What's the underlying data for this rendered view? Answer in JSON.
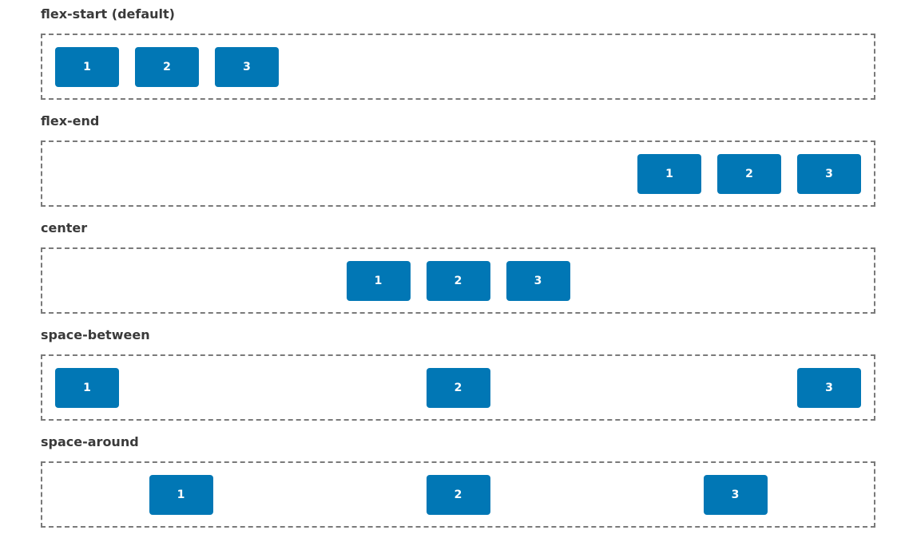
{
  "sections": [
    {
      "title": "flex-start (default)",
      "items": [
        "1",
        "2",
        "3"
      ]
    },
    {
      "title": "flex-end",
      "items": [
        "1",
        "2",
        "3"
      ]
    },
    {
      "title": "center",
      "items": [
        "1",
        "2",
        "3"
      ]
    },
    {
      "title": "space-between",
      "items": [
        "1",
        "2",
        "3"
      ]
    },
    {
      "title": "space-around",
      "items": [
        "1",
        "2",
        "3"
      ]
    }
  ],
  "colors": {
    "box": "#0177b5",
    "box_text": "#ffffff",
    "title_text": "#3a3a3a",
    "container_border": "#7a7a7a"
  }
}
